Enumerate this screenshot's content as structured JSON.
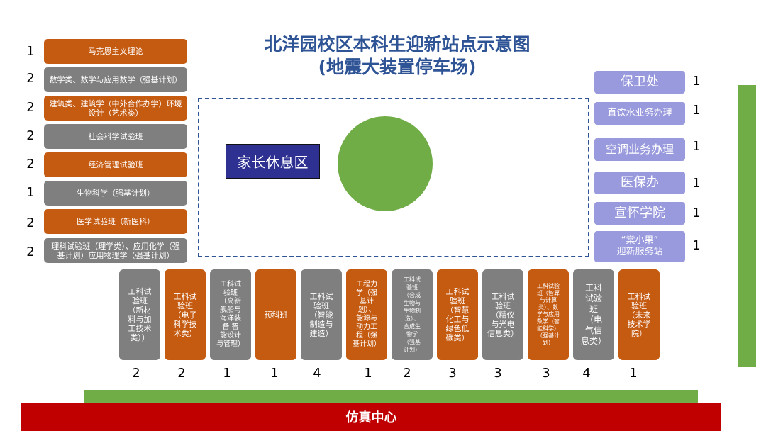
{
  "title": {
    "line1": "北洋园校区本科生迎新站点示意图",
    "line2": "(地震大装置停车场)"
  },
  "colors": {
    "orange": "#c55a11",
    "grey": "#7f7f7f",
    "lavender": "#9999dd",
    "navy": "#2e3192",
    "green": "#70ad47",
    "red": "#c00000",
    "title_blue": "#2f5496"
  },
  "left_stations": [
    {
      "label": "马克思主义理论",
      "count": "1",
      "color": "orange"
    },
    {
      "label": "数学类、数学与应用数学（强基计划）",
      "count": "2",
      "color": "grey"
    },
    {
      "label": "建筑类、建筑学（中外合作办学）环境设计（艺术类）",
      "count": "2",
      "color": "orange"
    },
    {
      "label": "社会科学试验班",
      "count": "2",
      "color": "grey"
    },
    {
      "label": "经济管理试验班",
      "count": "2",
      "color": "orange"
    },
    {
      "label": "生物科学（强基计划）",
      "count": "1",
      "color": "grey"
    },
    {
      "label": "医学试验班（新医科）",
      "count": "2",
      "color": "orange"
    },
    {
      "label": "理科试验班（理学类）、应用化学（强基计划）应用物理学（强基计划）",
      "count": "2",
      "color": "grey"
    }
  ],
  "right_stations": [
    {
      "label": "保卫处",
      "count": "1"
    },
    {
      "label": "直饮水业务办理",
      "count": "1"
    },
    {
      "label": "空调业务办理",
      "count": "1"
    },
    {
      "label": "医保办",
      "count": "1"
    },
    {
      "label": "宣怀学院",
      "count": "1"
    },
    {
      "label": "“棠小果”\n迎新服务站",
      "count": "1"
    }
  ],
  "bottom_stations": [
    {
      "label": "工科试\n验班\n（新材\n料与加\n工技术\n类））",
      "count": "2",
      "color": "grey"
    },
    {
      "label": "工科试\n验班\n（电子\n科学技\n术类）",
      "count": "2",
      "color": "orange"
    },
    {
      "label": "工科试\n验班\n（高新\n舰船与\n海洋装\n备 智\n能设计\n与管理）",
      "count": "1",
      "color": "grey"
    },
    {
      "label": "预科班",
      "count": "1",
      "color": "orange"
    },
    {
      "label": "工科试\n验班\n（智能\n制造与\n建造）",
      "count": "4",
      "color": "grey"
    },
    {
      "label": "工程力\n学（强\n基计\n划）、\n能源与\n动力工\n程（强\n基计划）",
      "count": "1",
      "color": "orange"
    },
    {
      "label": "工科试\n验班\n（合成\n生物与\n生物制\n造）、\n合成生\n物学\n（强基\n计划）",
      "count": "2",
      "color": "grey"
    },
    {
      "label": "工科试\n验班\n（智慧\n化工与\n绿色低\n碳类）",
      "count": "3",
      "color": "orange"
    },
    {
      "label": "工科试\n验班\n（精仪\n与光电\n信息类）",
      "count": "3",
      "color": "grey"
    },
    {
      "label": "工科试验\n班（智算\n与计算\n类）、数\n学与应用\n数学（智\n能科学）\n（强基计\n划）",
      "count": "3",
      "color": "orange"
    },
    {
      "label": "工科\n试验\n班\n（电\n气信\n息类）",
      "count": "4",
      "color": "grey"
    },
    {
      "label": "工科试\n验班\n（未来\n技术学\n院）",
      "count": "1",
      "color": "orange"
    }
  ],
  "center": {
    "rest_area_label": "家长休息区"
  },
  "footer": {
    "label": "仿真中心"
  }
}
